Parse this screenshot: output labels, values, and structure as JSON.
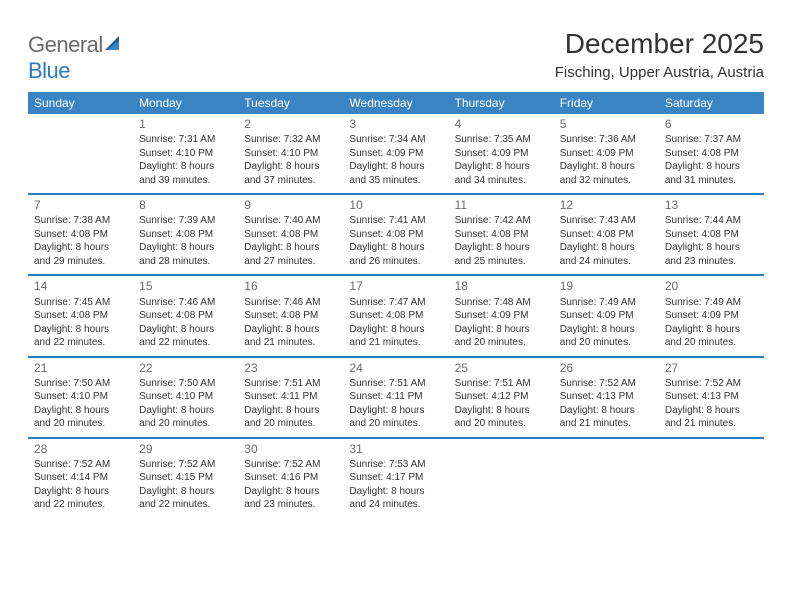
{
  "brand": {
    "part1": "General",
    "part2": "Blue"
  },
  "title": "December 2025",
  "location": "Fisching, Upper Austria, Austria",
  "colors": {
    "header_bg": "#3b84c4",
    "header_text": "#ffffff",
    "rule": "#2b7bbf",
    "body_text": "#333333",
    "daynum": "#6b6b6b",
    "logo_gray": "#6b6b6b",
    "logo_blue": "#2b7bbf",
    "page_bg": "#ffffff"
  },
  "typography": {
    "title_fontsize": 28,
    "location_fontsize": 15,
    "header_fontsize": 12,
    "daynum_fontsize": 12,
    "cell_fontsize": 10,
    "font_family": "Arial"
  },
  "days_of_week": [
    "Sunday",
    "Monday",
    "Tuesday",
    "Wednesday",
    "Thursday",
    "Friday",
    "Saturday"
  ],
  "weeks": [
    [
      null,
      {
        "n": "1",
        "sr": "Sunrise: 7:31 AM",
        "ss": "Sunset: 4:10 PM",
        "d1": "Daylight: 8 hours",
        "d2": "and 39 minutes."
      },
      {
        "n": "2",
        "sr": "Sunrise: 7:32 AM",
        "ss": "Sunset: 4:10 PM",
        "d1": "Daylight: 8 hours",
        "d2": "and 37 minutes."
      },
      {
        "n": "3",
        "sr": "Sunrise: 7:34 AM",
        "ss": "Sunset: 4:09 PM",
        "d1": "Daylight: 8 hours",
        "d2": "and 35 minutes."
      },
      {
        "n": "4",
        "sr": "Sunrise: 7:35 AM",
        "ss": "Sunset: 4:09 PM",
        "d1": "Daylight: 8 hours",
        "d2": "and 34 minutes."
      },
      {
        "n": "5",
        "sr": "Sunrise: 7:36 AM",
        "ss": "Sunset: 4:09 PM",
        "d1": "Daylight: 8 hours",
        "d2": "and 32 minutes."
      },
      {
        "n": "6",
        "sr": "Sunrise: 7:37 AM",
        "ss": "Sunset: 4:08 PM",
        "d1": "Daylight: 8 hours",
        "d2": "and 31 minutes."
      }
    ],
    [
      {
        "n": "7",
        "sr": "Sunrise: 7:38 AM",
        "ss": "Sunset: 4:08 PM",
        "d1": "Daylight: 8 hours",
        "d2": "and 29 minutes."
      },
      {
        "n": "8",
        "sr": "Sunrise: 7:39 AM",
        "ss": "Sunset: 4:08 PM",
        "d1": "Daylight: 8 hours",
        "d2": "and 28 minutes."
      },
      {
        "n": "9",
        "sr": "Sunrise: 7:40 AM",
        "ss": "Sunset: 4:08 PM",
        "d1": "Daylight: 8 hours",
        "d2": "and 27 minutes."
      },
      {
        "n": "10",
        "sr": "Sunrise: 7:41 AM",
        "ss": "Sunset: 4:08 PM",
        "d1": "Daylight: 8 hours",
        "d2": "and 26 minutes."
      },
      {
        "n": "11",
        "sr": "Sunrise: 7:42 AM",
        "ss": "Sunset: 4:08 PM",
        "d1": "Daylight: 8 hours",
        "d2": "and 25 minutes."
      },
      {
        "n": "12",
        "sr": "Sunrise: 7:43 AM",
        "ss": "Sunset: 4:08 PM",
        "d1": "Daylight: 8 hours",
        "d2": "and 24 minutes."
      },
      {
        "n": "13",
        "sr": "Sunrise: 7:44 AM",
        "ss": "Sunset: 4:08 PM",
        "d1": "Daylight: 8 hours",
        "d2": "and 23 minutes."
      }
    ],
    [
      {
        "n": "14",
        "sr": "Sunrise: 7:45 AM",
        "ss": "Sunset: 4:08 PM",
        "d1": "Daylight: 8 hours",
        "d2": "and 22 minutes."
      },
      {
        "n": "15",
        "sr": "Sunrise: 7:46 AM",
        "ss": "Sunset: 4:08 PM",
        "d1": "Daylight: 8 hours",
        "d2": "and 22 minutes."
      },
      {
        "n": "16",
        "sr": "Sunrise: 7:46 AM",
        "ss": "Sunset: 4:08 PM",
        "d1": "Daylight: 8 hours",
        "d2": "and 21 minutes."
      },
      {
        "n": "17",
        "sr": "Sunrise: 7:47 AM",
        "ss": "Sunset: 4:08 PM",
        "d1": "Daylight: 8 hours",
        "d2": "and 21 minutes."
      },
      {
        "n": "18",
        "sr": "Sunrise: 7:48 AM",
        "ss": "Sunset: 4:09 PM",
        "d1": "Daylight: 8 hours",
        "d2": "and 20 minutes."
      },
      {
        "n": "19",
        "sr": "Sunrise: 7:49 AM",
        "ss": "Sunset: 4:09 PM",
        "d1": "Daylight: 8 hours",
        "d2": "and 20 minutes."
      },
      {
        "n": "20",
        "sr": "Sunrise: 7:49 AM",
        "ss": "Sunset: 4:09 PM",
        "d1": "Daylight: 8 hours",
        "d2": "and 20 minutes."
      }
    ],
    [
      {
        "n": "21",
        "sr": "Sunrise: 7:50 AM",
        "ss": "Sunset: 4:10 PM",
        "d1": "Daylight: 8 hours",
        "d2": "and 20 minutes."
      },
      {
        "n": "22",
        "sr": "Sunrise: 7:50 AM",
        "ss": "Sunset: 4:10 PM",
        "d1": "Daylight: 8 hours",
        "d2": "and 20 minutes."
      },
      {
        "n": "23",
        "sr": "Sunrise: 7:51 AM",
        "ss": "Sunset: 4:11 PM",
        "d1": "Daylight: 8 hours",
        "d2": "and 20 minutes."
      },
      {
        "n": "24",
        "sr": "Sunrise: 7:51 AM",
        "ss": "Sunset: 4:11 PM",
        "d1": "Daylight: 8 hours",
        "d2": "and 20 minutes."
      },
      {
        "n": "25",
        "sr": "Sunrise: 7:51 AM",
        "ss": "Sunset: 4:12 PM",
        "d1": "Daylight: 8 hours",
        "d2": "and 20 minutes."
      },
      {
        "n": "26",
        "sr": "Sunrise: 7:52 AM",
        "ss": "Sunset: 4:13 PM",
        "d1": "Daylight: 8 hours",
        "d2": "and 21 minutes."
      },
      {
        "n": "27",
        "sr": "Sunrise: 7:52 AM",
        "ss": "Sunset: 4:13 PM",
        "d1": "Daylight: 8 hours",
        "d2": "and 21 minutes."
      }
    ],
    [
      {
        "n": "28",
        "sr": "Sunrise: 7:52 AM",
        "ss": "Sunset: 4:14 PM",
        "d1": "Daylight: 8 hours",
        "d2": "and 22 minutes."
      },
      {
        "n": "29",
        "sr": "Sunrise: 7:52 AM",
        "ss": "Sunset: 4:15 PM",
        "d1": "Daylight: 8 hours",
        "d2": "and 22 minutes."
      },
      {
        "n": "30",
        "sr": "Sunrise: 7:52 AM",
        "ss": "Sunset: 4:16 PM",
        "d1": "Daylight: 8 hours",
        "d2": "and 23 minutes."
      },
      {
        "n": "31",
        "sr": "Sunrise: 7:53 AM",
        "ss": "Sunset: 4:17 PM",
        "d1": "Daylight: 8 hours",
        "d2": "and 24 minutes."
      },
      null,
      null,
      null
    ]
  ]
}
